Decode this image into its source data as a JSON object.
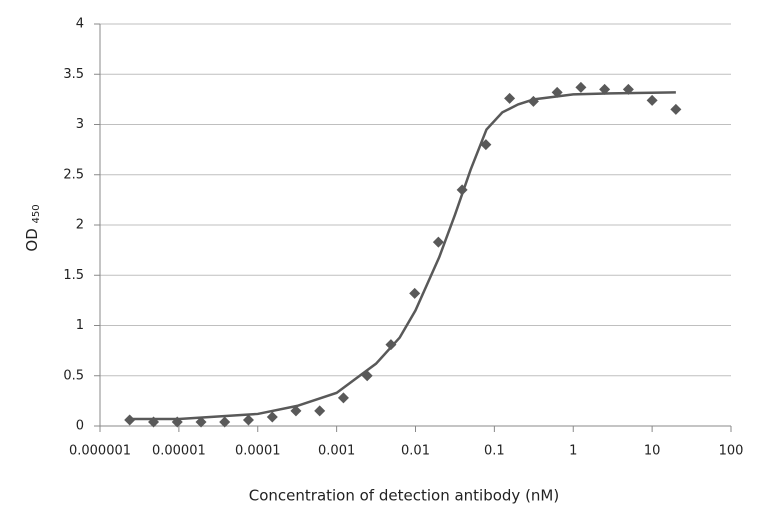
{
  "chart_data": {
    "type": "scatter",
    "xlabel": "Concentration of detection antibody (nM)",
    "ylabel": "OD",
    "ylabel_sub": "450",
    "xscale": "log",
    "xlim": [
      1e-06,
      100
    ],
    "xticks": [
      1e-06,
      1e-05,
      0.0001,
      0.001,
      0.01,
      0.1,
      1,
      10,
      100
    ],
    "ylim": [
      0,
      4
    ],
    "yticks": [
      0,
      0.5,
      1,
      1.5,
      2,
      2.5,
      3,
      3.5,
      4
    ],
    "grid": true,
    "series": [
      {
        "mode": "markers",
        "color": "#595959",
        "x": [
          2.38e-06,
          4.77e-06,
          9.54e-06,
          1.91e-05,
          3.81e-05,
          7.63e-05,
          0.000153,
          0.000305,
          0.00061,
          0.00122,
          0.00244,
          0.00488,
          0.00977,
          0.0195,
          0.039,
          0.078,
          0.156,
          0.3125,
          0.625,
          1.25,
          2.5,
          5,
          10,
          20
        ],
        "values": [
          0.06,
          0.04,
          0.04,
          0.04,
          0.04,
          0.06,
          0.09,
          0.15,
          0.15,
          0.28,
          0.5,
          0.81,
          1.32,
          1.83,
          2.35,
          2.8,
          3.26,
          3.23,
          3.32,
          3.37,
          3.35,
          3.35,
          3.24,
          3.15
        ]
      },
      {
        "mode": "line",
        "color": "#595959",
        "x": [
          2.3e-06,
          1e-05,
          0.0001,
          0.000316,
          0.001,
          0.00316,
          0.00631,
          0.01,
          0.0158,
          0.02,
          0.0316,
          0.05,
          0.0794,
          0.126,
          0.2,
          0.316,
          1,
          3,
          20
        ],
        "values": [
          0.07,
          0.07,
          0.12,
          0.2,
          0.33,
          0.62,
          0.88,
          1.15,
          1.5,
          1.68,
          2.1,
          2.55,
          2.95,
          3.12,
          3.2,
          3.25,
          3.3,
          3.31,
          3.32
        ]
      }
    ]
  }
}
